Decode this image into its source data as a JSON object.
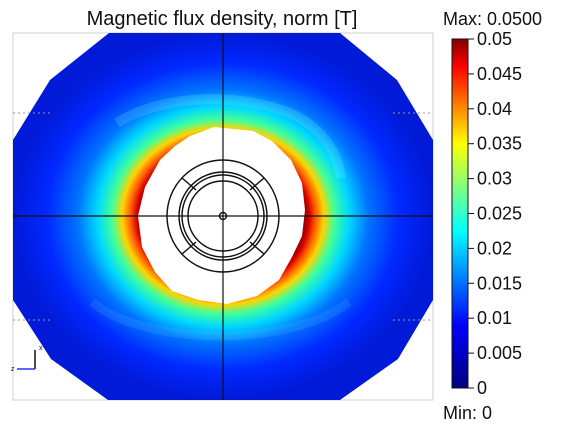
{
  "title": "Magnetic flux density, norm [T]",
  "colorbar": {
    "max_label": "Max: 0.0500",
    "min_label": "Min: 0",
    "colormap": "rainbow",
    "range": [
      0,
      0.05
    ],
    "ticks": [
      "0.05",
      "0.045",
      "0.04",
      "0.035",
      "0.03",
      "0.025",
      "0.02",
      "0.015",
      "0.01",
      "0.005",
      "0"
    ]
  },
  "axis_triad": {
    "x_label": "x",
    "z_label": "z"
  },
  "chart_data": {
    "type": "heatmap",
    "title": "Magnetic flux density, norm [T]",
    "quantity": "Magnetic flux density, norm",
    "unit": "T",
    "value_range": [
      0,
      0.05
    ],
    "max": 0.05,
    "min": 0,
    "colorbar_ticks": [
      0.05,
      0.045,
      0.04,
      0.035,
      0.03,
      0.025,
      0.02,
      0.015,
      0.01,
      0.005,
      0
    ],
    "legend_placement": "right",
    "colors": {
      "low": "#00008f",
      "mid": "#00ffff",
      "high": "#ff0000",
      "max": "#800000"
    }
  }
}
